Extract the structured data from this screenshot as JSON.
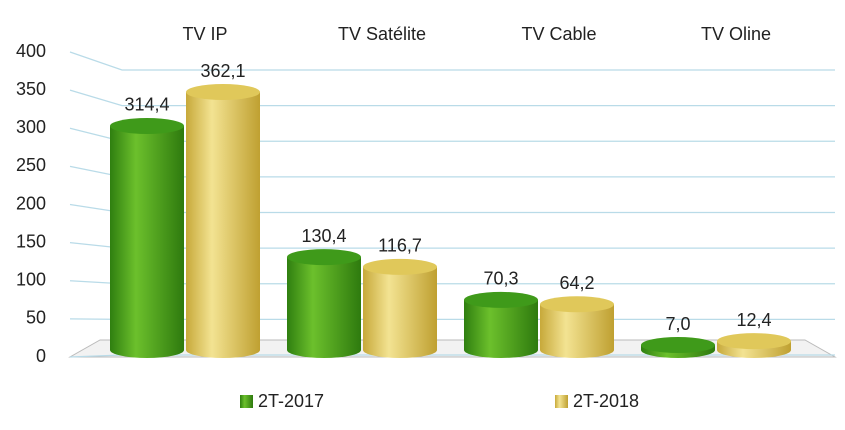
{
  "chart_data": {
    "type": "bar",
    "categories": [
      "TV IP",
      "TV Satélite",
      "TV Cable",
      "TV Oline"
    ],
    "series": [
      {
        "name": "2T-2017",
        "color": "#3f9a1a",
        "values": [
          314.4,
          130.4,
          70.3,
          7.0
        ],
        "value_labels": [
          "314,4",
          "130,4",
          "70,3",
          "7,0"
        ]
      },
      {
        "name": "2T-2018",
        "color": "#e0c85a",
        "values": [
          362.1,
          116.7,
          64.2,
          12.4
        ],
        "value_labels": [
          "362,1",
          "116,7",
          "64,2",
          "12,4"
        ]
      }
    ],
    "ylim": [
      0,
      400
    ],
    "yticks": [
      0,
      50,
      100,
      150,
      200,
      250,
      300,
      350,
      400
    ],
    "grid": true
  }
}
